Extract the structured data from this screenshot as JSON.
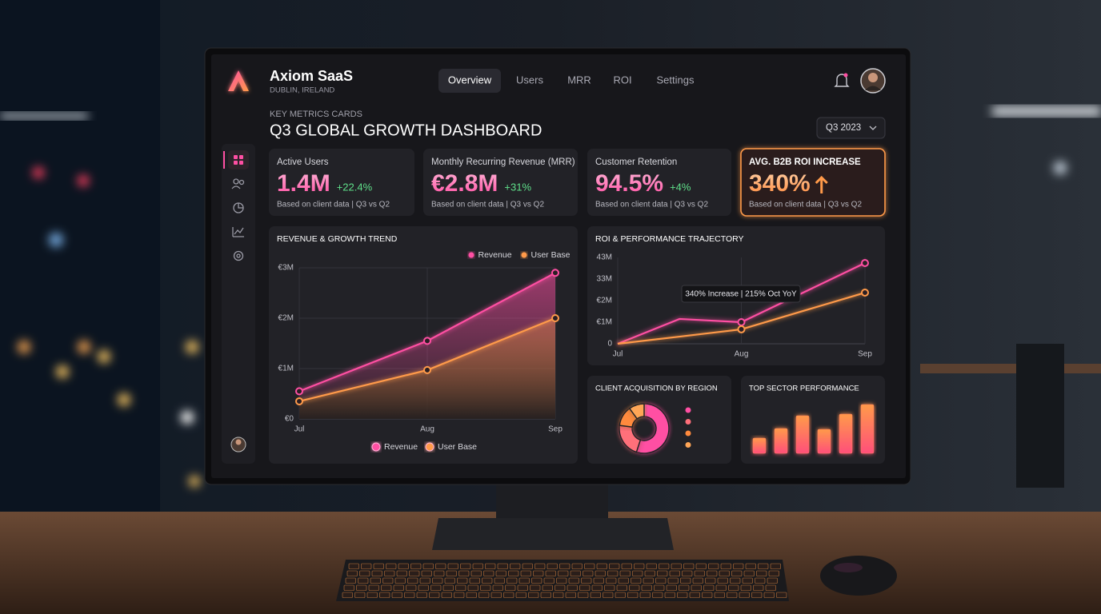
{
  "header": {
    "brand": "Axiom SaaS",
    "location": "DUBLIN, IRELAND",
    "nav": [
      "Overview",
      "Users",
      "MRR",
      "ROI",
      "Settings"
    ],
    "section_label": "KEY METRICS CARDS",
    "title": "Q3 GLOBAL GROWTH DASHBOARD",
    "period": "Q3 2023"
  },
  "cards": [
    {
      "label": "Active Users",
      "value": "1.4M",
      "change": "+22.4%",
      "note": "Based on client data | Q3 vs Q2"
    },
    {
      "label": "Monthly Recurring Revenue (MRR)",
      "value": "€2.8M",
      "change": "+31%",
      "note": "Based on client data | Q3 vs Q2"
    },
    {
      "label": "Customer Retention",
      "value": "94.5%",
      "change": "+4%",
      "note": "Based on client data | Q3 vs Q2"
    },
    {
      "label": "AVG. B2B ROI INCREASE",
      "value": "340%",
      "note": "Based on client data | Q3 vs Q2"
    }
  ],
  "chart_data": [
    {
      "type": "line",
      "title": "REVENUE & GROWTH TREND",
      "categories": [
        "Jul",
        "Aug",
        "Sep"
      ],
      "series": [
        {
          "name": "Revenue",
          "color": "#ff4fa3",
          "values": [
            0.55,
            1.55,
            2.9
          ]
        },
        {
          "name": "User Base",
          "color": "#ff9a4a",
          "values": [
            0.35,
            0.97,
            2.0
          ]
        }
      ],
      "ylim": [
        0,
        3
      ],
      "yticks": [
        {
          "value": 0,
          "label": "€0"
        },
        {
          "value": 1,
          "label": "€1M"
        },
        {
          "value": 2,
          "label": "€2M"
        },
        {
          "value": 3,
          "label": "€3M"
        }
      ],
      "grid": true
    },
    {
      "type": "line",
      "title": "ROI & PERFORMANCE TRAJECTORY",
      "categories": [
        "Jul",
        null,
        "Aug",
        null,
        "Sep"
      ],
      "series": [
        {
          "color": "#ff4fa3",
          "values": [
            0,
            1.15,
            1.0,
            2.37,
            3.74
          ]
        },
        {
          "color": "#ff9a4a",
          "values": [
            0,
            0.33,
            0.67,
            1.52,
            2.37
          ]
        }
      ],
      "ylim": [
        0,
        4
      ],
      "ytick_labels": [
        "0",
        "€1M",
        "€2M",
        "33M",
        "43M"
      ],
      "annotation": "340% Increase | 215% Oct YoY"
    },
    {
      "type": "donut",
      "title": "CLIENT ACQUISITION BY REGION",
      "values": [
        55,
        22,
        13,
        10
      ],
      "colors": [
        "#ff4fa3",
        "#ff6f7a",
        "#ff8a3d",
        "#ffa657"
      ]
    },
    {
      "type": "bar",
      "title": "TOP SECTOR PERFORMANCE",
      "categories": [
        null,
        null,
        null,
        null,
        null,
        null
      ],
      "values": [
        19,
        31,
        47,
        30,
        49,
        61
      ],
      "color": "#ff7a5a",
      "ylim": [
        0,
        64
      ]
    }
  ]
}
